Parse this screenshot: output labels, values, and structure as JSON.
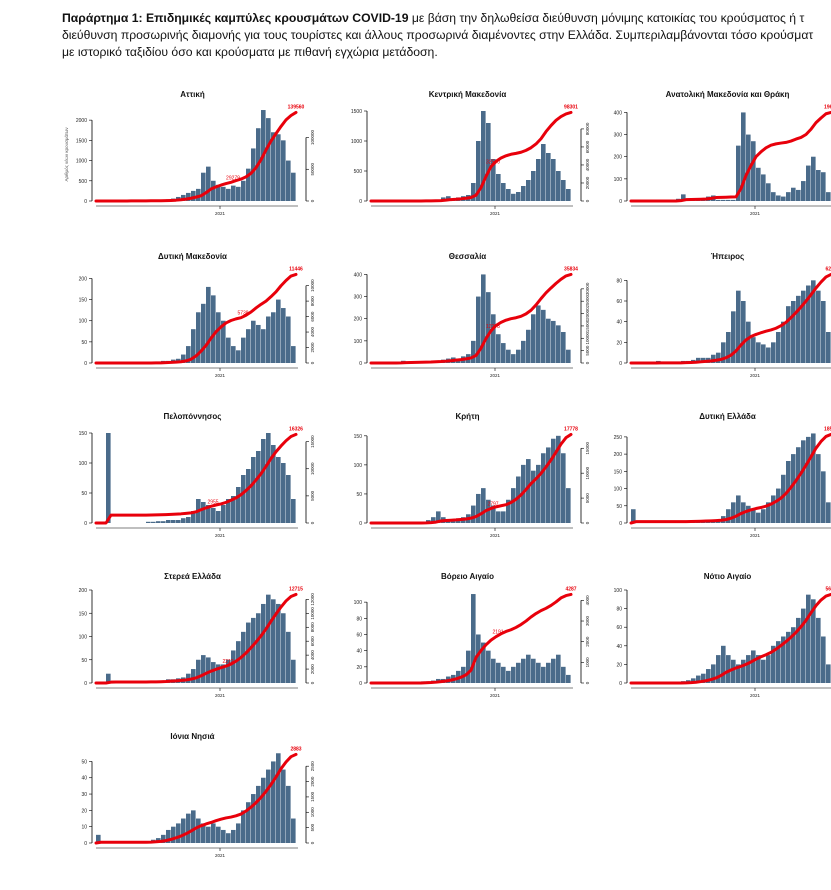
{
  "intro": {
    "bold": "Παράρτημα 1:  Επιδημικές καμπύλες κρουσμάτων COVID-19",
    "line1": " με βάση την δηλωθείσα διεύθυνση μόνιμης κατοικίας του κρούσματος ή τ",
    "line2": "διεύθυνση προσωρινής διαμονής για τους τουρίστες και άλλους προσωρινά διαμένοντες στην Ελλάδα. Συμπεριλαμβάνονται τόσο κρούσματ",
    "line3": "με ιστορικό ταξιδίου όσο και κρούσματα με πιθανή εγχώρια μετάδοση."
  },
  "colors": {
    "bars": "#4a6b8a",
    "curve": "#e8000b",
    "label": "#e8000b"
  },
  "chart_data": [
    {
      "type": "bar+line",
      "title": "Αττική",
      "ylabel": "Αριθμός νέων κρουσμάτων",
      "xtick": "2021",
      "ylim": [
        0,
        2300
      ],
      "yticks": [
        0,
        500,
        1000,
        1500,
        2000
      ],
      "y2ticks": [
        0,
        50000,
        100000
      ],
      "final_label": "139560",
      "mid_labels": [
        "29279"
      ],
      "values": [
        0,
        0,
        0,
        0,
        5,
        5,
        5,
        5,
        5,
        10,
        10,
        10,
        10,
        20,
        40,
        60,
        100,
        150,
        200,
        250,
        300,
        700,
        850,
        500,
        400,
        350,
        300,
        380,
        350,
        500,
        800,
        1300,
        1800,
        2250,
        2050,
        1700,
        1650,
        1500,
        1000,
        700
      ]
    },
    {
      "type": "bar+line",
      "title": "Κεντρική Μακεδονία",
      "xtick": "2021",
      "ylim": [
        0,
        1550
      ],
      "yticks": [
        0,
        500,
        1000,
        1500
      ],
      "y2ticks": [
        0,
        20000,
        40000,
        60000,
        80000
      ],
      "final_label": "98301",
      "mid_labels": [
        "32540"
      ],
      "values": [
        0,
        0,
        0,
        0,
        0,
        0,
        0,
        0,
        0,
        0,
        10,
        10,
        10,
        20,
        60,
        80,
        40,
        60,
        80,
        100,
        300,
        1000,
        1500,
        1300,
        700,
        450,
        300,
        200,
        120,
        150,
        250,
        350,
        500,
        700,
        950,
        800,
        700,
        500,
        350,
        200
      ]
    },
    {
      "type": "bar+line",
      "title": "Ανατολική Μακεδονία και Θράκη",
      "xtick": "2021",
      "ylim": [
        0,
        420
      ],
      "yticks": [
        0,
        100,
        200,
        300,
        400
      ],
      "y2ticks": [
        0,
        5000,
        10000,
        15000
      ],
      "final_label": "19676",
      "mid_labels": [],
      "values": [
        0,
        0,
        0,
        0,
        0,
        0,
        0,
        0,
        0,
        10,
        30,
        5,
        5,
        5,
        5,
        20,
        25,
        5,
        5,
        5,
        5,
        250,
        400,
        300,
        270,
        150,
        120,
        80,
        40,
        25,
        20,
        40,
        60,
        50,
        90,
        160,
        200,
        140,
        130,
        40
      ]
    },
    {
      "type": "bar+line",
      "title": "Δυτική Μακεδονία",
      "xtick": "2021",
      "ylim": [
        0,
        220
      ],
      "yticks": [
        0,
        50,
        100,
        150,
        200
      ],
      "y2ticks": [
        0,
        2000,
        4000,
        6000,
        8000,
        10000
      ],
      "final_label": "11446",
      "mid_labels": [
        "5738"
      ],
      "values": [
        0,
        0,
        0,
        0,
        0,
        0,
        0,
        0,
        0,
        0,
        0,
        2,
        2,
        5,
        5,
        8,
        10,
        20,
        40,
        80,
        120,
        140,
        180,
        160,
        120,
        100,
        60,
        40,
        30,
        60,
        80,
        100,
        90,
        80,
        110,
        120,
        150,
        130,
        110,
        40
      ]
    },
    {
      "type": "bar+line",
      "title": "Θεσσαλία",
      "xtick": "2021",
      "ylim": [
        0,
        420
      ],
      "yticks": [
        0,
        100,
        200,
        300,
        400
      ],
      "y2ticks": [
        0,
        5000,
        10000,
        15000,
        20000,
        25000,
        30000
      ],
      "final_label": "35834",
      "mid_labels": [
        "12278"
      ],
      "values": [
        0,
        0,
        0,
        0,
        0,
        5,
        10,
        5,
        5,
        5,
        5,
        5,
        10,
        10,
        15,
        20,
        25,
        20,
        30,
        40,
        100,
        300,
        400,
        320,
        220,
        130,
        90,
        60,
        40,
        60,
        100,
        150,
        220,
        260,
        240,
        200,
        190,
        170,
        140,
        60
      ]
    },
    {
      "type": "bar+line",
      "title": "Ήπειρος",
      "xtick": "2021",
      "ylim": [
        0,
        90
      ],
      "yticks": [
        0,
        20,
        40,
        60,
        80
      ],
      "y2ticks": [
        0,
        1000,
        2000,
        3000,
        4000,
        5000,
        6000
      ],
      "final_label": "6237",
      "mid_labels": [],
      "values": [
        0,
        0,
        0,
        0,
        0,
        2,
        0,
        0,
        0,
        0,
        2,
        2,
        3,
        5,
        5,
        5,
        8,
        10,
        20,
        30,
        50,
        70,
        60,
        40,
        25,
        20,
        18,
        15,
        20,
        30,
        40,
        55,
        60,
        65,
        70,
        75,
        80,
        70,
        60,
        30
      ]
    },
    {
      "type": "bar+line",
      "title": "Πελοπόννησος",
      "xtick": "2021",
      "ylim": [
        0,
        155
      ],
      "yticks": [
        0,
        50,
        100,
        150
      ],
      "y2ticks": [
        0,
        5000,
        10000,
        15000
      ],
      "final_label": "16326",
      "mid_labels": [
        "2955"
      ],
      "values": [
        0,
        0,
        150,
        0,
        0,
        0,
        0,
        0,
        0,
        0,
        2,
        2,
        3,
        3,
        5,
        5,
        5,
        8,
        10,
        20,
        40,
        35,
        30,
        25,
        20,
        30,
        40,
        45,
        60,
        80,
        90,
        110,
        120,
        140,
        150,
        130,
        110,
        100,
        80,
        40
      ]
    },
    {
      "type": "bar+line",
      "title": "Κρήτη",
      "xtick": "2021",
      "ylim": [
        0,
        160
      ],
      "yticks": [
        0,
        50,
        100,
        150
      ],
      "y2ticks": [
        0,
        5000,
        10000,
        15000
      ],
      "final_label": "17778",
      "mid_labels": [
        "2797"
      ],
      "values": [
        0,
        0,
        0,
        0,
        0,
        0,
        0,
        0,
        0,
        0,
        2,
        5,
        10,
        20,
        10,
        5,
        5,
        8,
        10,
        15,
        30,
        50,
        60,
        40,
        30,
        20,
        20,
        40,
        60,
        80,
        100,
        110,
        90,
        100,
        120,
        130,
        145,
        150,
        120,
        60
      ]
    },
    {
      "type": "bar+line",
      "title": "Δυτική Ελλάδα",
      "xtick": "2021",
      "ylim": [
        0,
        270
      ],
      "yticks": [
        0,
        50,
        100,
        150,
        200,
        250
      ],
      "y2ticks": [
        0,
        5000,
        10000,
        15000
      ],
      "final_label": "18514",
      "mid_labels": [],
      "values": [
        40,
        0,
        0,
        0,
        0,
        0,
        0,
        0,
        0,
        0,
        2,
        2,
        5,
        5,
        5,
        5,
        8,
        10,
        20,
        40,
        60,
        80,
        60,
        50,
        40,
        30,
        40,
        60,
        80,
        100,
        140,
        180,
        200,
        220,
        240,
        250,
        260,
        200,
        150,
        60
      ]
    },
    {
      "type": "bar+line",
      "title": "Στερεά Ελλάδα",
      "xtick": "2021",
      "ylim": [
        0,
        200
      ],
      "yticks": [
        0,
        50,
        100,
        150,
        200
      ],
      "y2ticks": [
        0,
        2000,
        4000,
        6000,
        8000,
        10000,
        12000
      ],
      "final_label": "12715",
      "mid_labels": [
        "2212"
      ],
      "values": [
        0,
        0,
        20,
        5,
        0,
        0,
        0,
        0,
        0,
        0,
        2,
        2,
        3,
        5,
        8,
        8,
        10,
        12,
        20,
        30,
        50,
        60,
        55,
        45,
        40,
        40,
        50,
        70,
        90,
        110,
        130,
        140,
        150,
        170,
        190,
        180,
        170,
        150,
        110,
        50
      ]
    },
    {
      "type": "bar+line",
      "title": "Βόρειο Αιγαίο",
      "xtick": "2021",
      "ylim": [
        0,
        115
      ],
      "yticks": [
        0,
        20,
        40,
        60,
        80,
        100
      ],
      "y2ticks": [
        0,
        1000,
        2000,
        3000,
        4000
      ],
      "final_label": "4287",
      "mid_labels": [
        "2191"
      ],
      "values": [
        0,
        0,
        0,
        0,
        0,
        0,
        0,
        0,
        0,
        0,
        2,
        2,
        3,
        5,
        5,
        8,
        10,
        15,
        20,
        40,
        110,
        60,
        50,
        40,
        30,
        25,
        20,
        15,
        20,
        25,
        30,
        35,
        30,
        25,
        20,
        25,
        30,
        35,
        20,
        10
      ]
    },
    {
      "type": "bar+line",
      "title": "Νότιο Αιγαίο",
      "xtick": "2021",
      "ylim": [
        0,
        100
      ],
      "yticks": [
        0,
        20,
        40,
        60,
        80,
        100
      ],
      "y2ticks": [
        0,
        1000,
        2000,
        3000,
        4000,
        5000
      ],
      "final_label": "5621",
      "mid_labels": [],
      "values": [
        0,
        0,
        0,
        0,
        0,
        0,
        0,
        0,
        0,
        0,
        2,
        3,
        5,
        8,
        10,
        15,
        20,
        30,
        40,
        30,
        25,
        20,
        25,
        30,
        35,
        30,
        25,
        30,
        40,
        45,
        50,
        55,
        60,
        70,
        80,
        95,
        90,
        70,
        50,
        20
      ]
    },
    {
      "type": "bar+line",
      "title": "Ιόνια Νησιά",
      "xtick": "2021",
      "ylim": [
        0,
        57
      ],
      "yticks": [
        0,
        10,
        20,
        30,
        40,
        50
      ],
      "y2ticks": [
        0,
        500,
        1000,
        1500,
        2000,
        2500
      ],
      "final_label": "2883",
      "mid_labels": [],
      "values": [
        5,
        0,
        0,
        0,
        0,
        0,
        0,
        0,
        0,
        0,
        1,
        2,
        3,
        5,
        8,
        10,
        12,
        15,
        18,
        20,
        15,
        12,
        10,
        12,
        10,
        8,
        6,
        8,
        12,
        20,
        25,
        30,
        35,
        40,
        45,
        50,
        55,
        45,
        35,
        15
      ]
    }
  ]
}
